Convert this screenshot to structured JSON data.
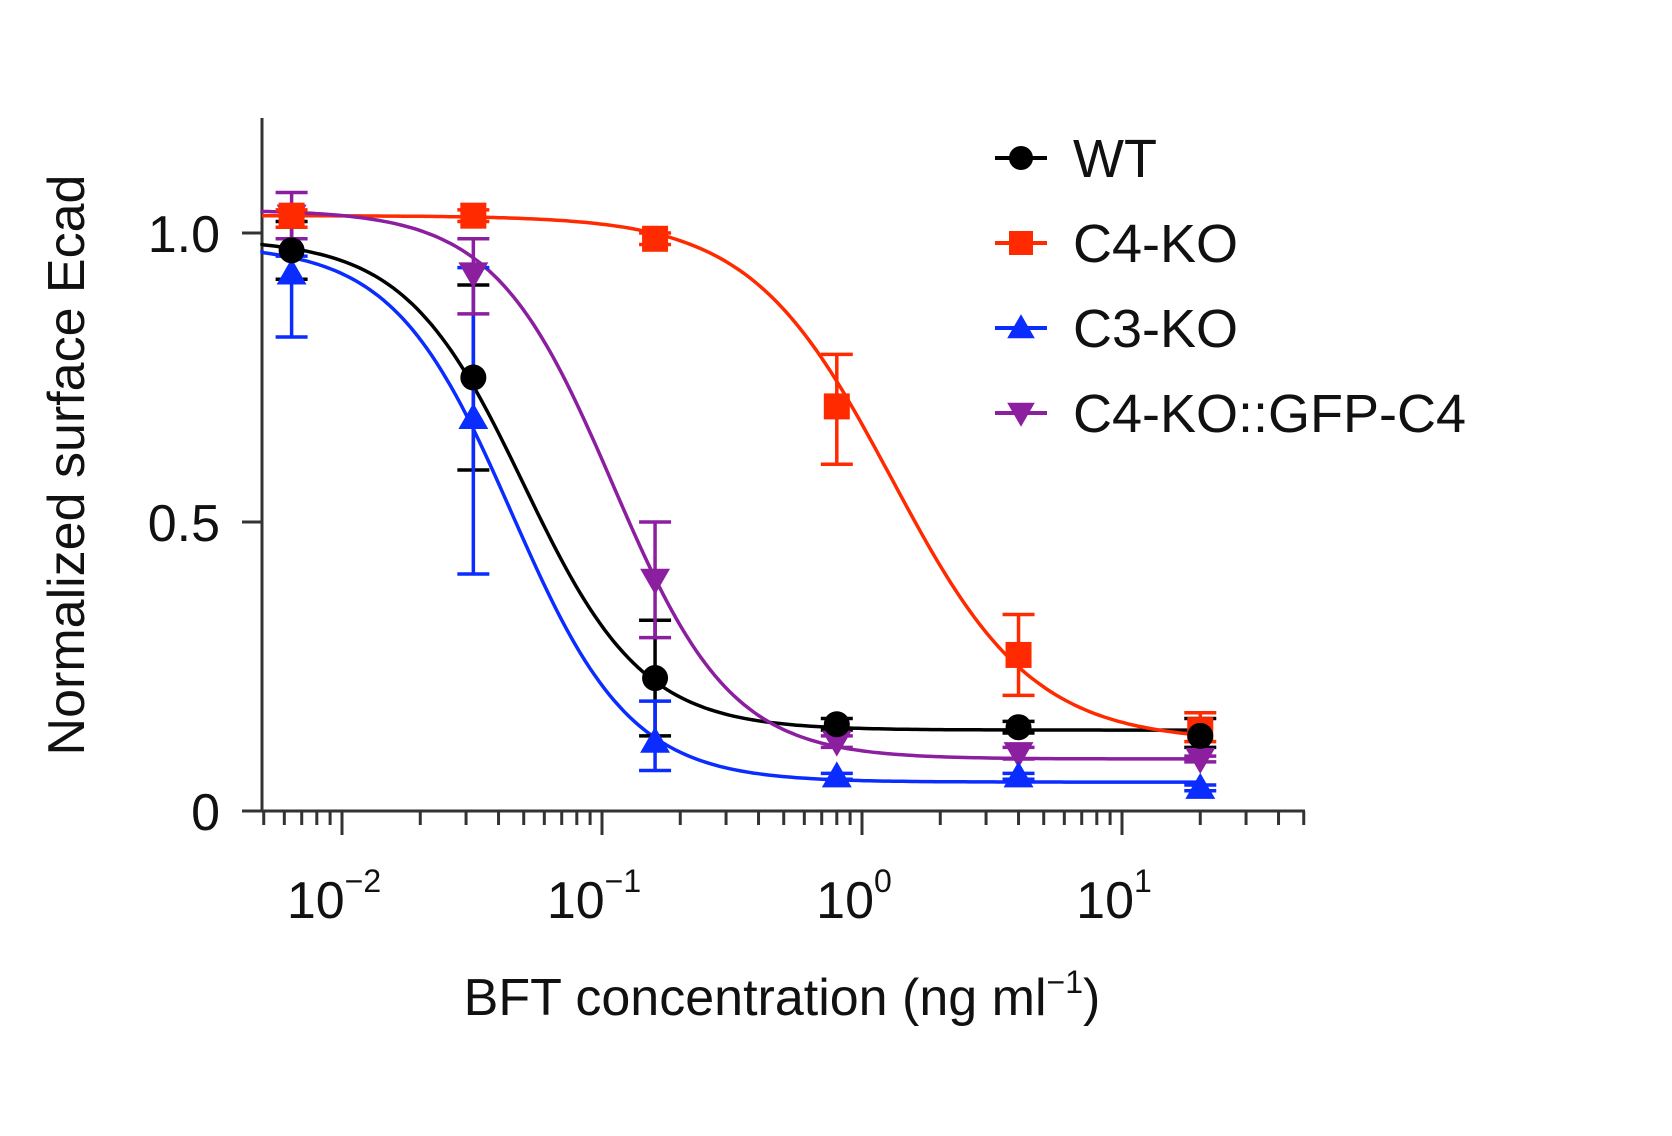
{
  "chart_data": {
    "type": "line",
    "subtype": "dose-response with error bars",
    "title": "",
    "xlabel": "BFT concentration (ng ml",
    "xlabel_sup": "−1",
    "xlabel_close": ")",
    "ylabel": "Normalized surface Ecad",
    "xscale": "log",
    "xlim": [
      0.005,
      55
    ],
    "ylim": [
      0,
      1.2
    ],
    "x_major_ticks": [
      {
        "value": 0.01,
        "base": "10",
        "exp": "−2"
      },
      {
        "value": 0.1,
        "base": "10",
        "exp": "−1"
      },
      {
        "value": 1,
        "base": "10",
        "exp": "0"
      },
      {
        "value": 10,
        "base": "10",
        "exp": "1"
      }
    ],
    "y_ticks": [
      {
        "value": 0,
        "label": "0"
      },
      {
        "value": 0.5,
        "label": "0.5"
      },
      {
        "value": 1.0,
        "label": "1.0"
      }
    ],
    "grid": false,
    "legend_position": "top-right",
    "x": [
      0.0064,
      0.032,
      0.16,
      0.8,
      4,
      20
    ],
    "series": [
      {
        "name": "WT",
        "color": "#000000",
        "marker": "circle",
        "values": [
          0.97,
          0.75,
          0.23,
          0.15,
          0.145,
          0.13
        ],
        "err_low": [
          0.92,
          0.59,
          0.13,
          0.14,
          0.135,
          0.11
        ],
        "err_high": [
          1.02,
          0.91,
          0.33,
          0.16,
          0.155,
          0.16
        ],
        "fit": {
          "top": 0.99,
          "bottom": 0.14,
          "ec50": 0.05,
          "hill": 1.9
        }
      },
      {
        "name": "C4-KO",
        "color": "#ff2a00",
        "marker": "square",
        "values": [
          1.03,
          1.03,
          0.99,
          0.7,
          0.27,
          0.14
        ],
        "err_low": [
          1.01,
          1.02,
          0.98,
          0.6,
          0.2,
          0.12
        ],
        "err_high": [
          1.04,
          1.04,
          1.0,
          0.79,
          0.34,
          0.17
        ],
        "fit": {
          "top": 1.03,
          "bottom": 0.12,
          "ec50": 1.3,
          "hill": 1.6
        }
      },
      {
        "name": "C3-KO",
        "color": "#0a2cff",
        "marker": "triangle-up",
        "values": [
          0.93,
          0.68,
          0.12,
          0.06,
          0.06,
          0.04
        ],
        "err_low": [
          0.82,
          0.41,
          0.07,
          0.055,
          0.055,
          0.035
        ],
        "err_high": [
          0.96,
          0.94,
          0.19,
          0.065,
          0.065,
          0.045
        ],
        "fit": {
          "top": 0.98,
          "bottom": 0.05,
          "ec50": 0.045,
          "hill": 1.9
        }
      },
      {
        "name": "C4-KO::GFP-C4",
        "color": "#8b1fa0",
        "marker": "triangle-down",
        "values": [
          1.03,
          0.93,
          0.4,
          0.12,
          0.1,
          0.09
        ],
        "err_low": [
          0.99,
          0.86,
          0.3,
          0.11,
          0.09,
          0.085
        ],
        "err_high": [
          1.07,
          0.99,
          0.5,
          0.13,
          0.11,
          0.095
        ],
        "fit": {
          "top": 1.04,
          "bottom": 0.09,
          "ec50": 0.11,
          "hill": 1.9
        }
      }
    ]
  }
}
